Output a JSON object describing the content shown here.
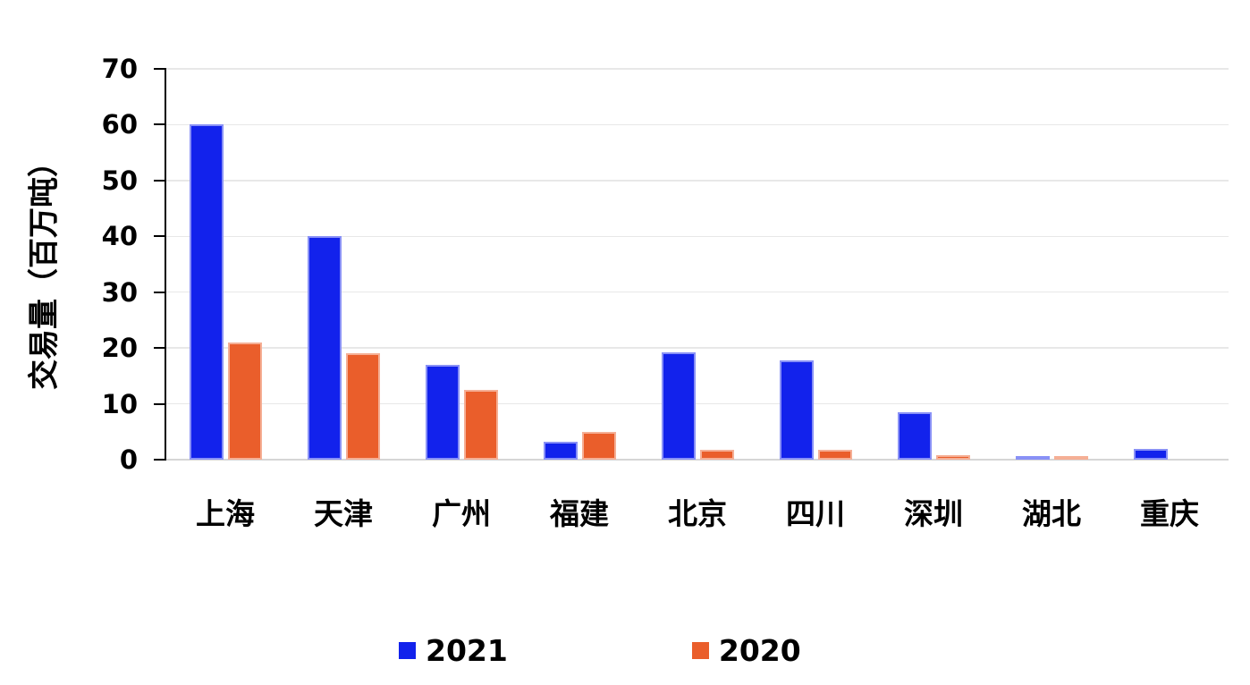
{
  "chart_data": {
    "type": "bar",
    "title": "",
    "xlabel": "",
    "ylabel": "交易量（百万吨）",
    "categories": [
      "上海",
      "天津",
      "广州",
      "福建",
      "北京",
      "四川",
      "深圳",
      "湖北",
      "重庆"
    ],
    "series": [
      {
        "name": "2021",
        "color": "#1222EC",
        "values": [
          60,
          40,
          17,
          3.2,
          19.2,
          17.8,
          8.5,
          0.6,
          2
        ]
      },
      {
        "name": "2020",
        "color": "#EA5E2B",
        "values": [
          21,
          19,
          12.5,
          5,
          1.8,
          1.8,
          0.8,
          0.6,
          0
        ]
      }
    ],
    "ylim": [
      0,
      70
    ],
    "yticks": [
      0,
      10,
      20,
      30,
      40,
      50,
      60,
      70
    ],
    "grid": true,
    "legend_position": "bottom",
    "legend_entries": [
      "2021",
      "2020"
    ]
  },
  "colors": {
    "background": "#FFFFFF",
    "series_2021": "#1222EC",
    "series_2020": "#EA5E2B",
    "gridline": "#E8E8E8",
    "baseline": "#D6D6D6",
    "axis_line": "#000000",
    "text": "#000000"
  }
}
